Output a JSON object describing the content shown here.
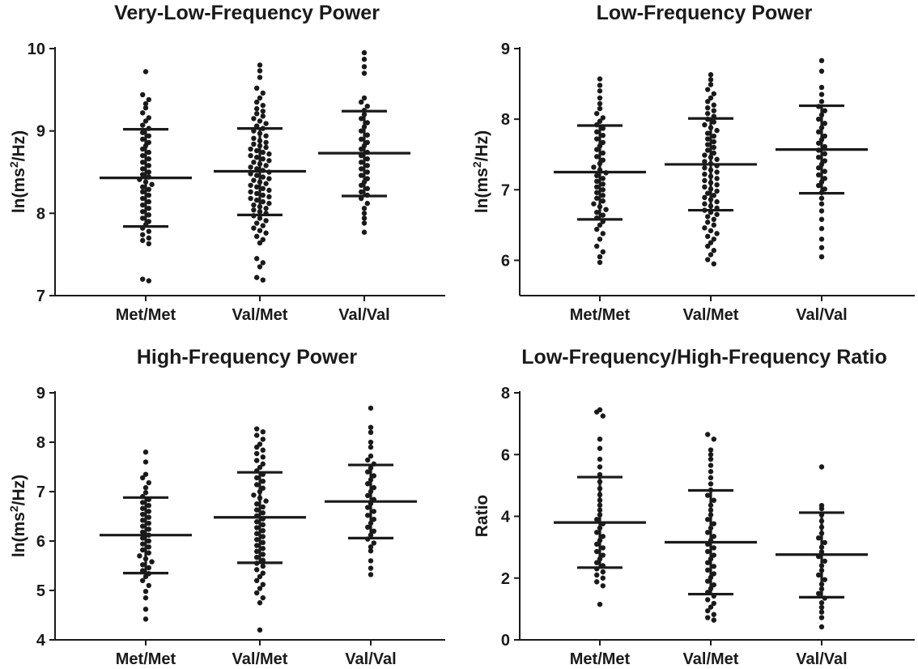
{
  "chart_data": [
    {
      "type": "scatter",
      "title": "Very-Low-Frequency Power",
      "ylabel": "ln(ms²/Hz)",
      "ylabel_parts": [
        "ln(ms",
        "2",
        "/Hz)"
      ],
      "ylim": [
        7,
        10
      ],
      "yticks": [
        7,
        8,
        9,
        10
      ],
      "ytick_labels": [
        "7",
        "8",
        "9",
        "10"
      ],
      "categories": [
        "Met/Met",
        "Val/Met",
        "Val/Val"
      ],
      "grid": false,
      "groups": [
        {
          "name": "Met/Met",
          "mean": 8.43,
          "sd_low": 7.84,
          "sd_high": 9.02,
          "values": [
            9.72,
            9.44,
            9.38,
            9.33,
            9.28,
            9.22,
            9.16,
            9.12,
            9.07,
            9.03,
            8.98,
            8.94,
            8.9,
            8.86,
            8.82,
            8.78,
            8.74,
            8.7,
            8.66,
            8.62,
            8.58,
            8.54,
            8.5,
            8.47,
            8.44,
            8.41,
            8.38,
            8.35,
            8.32,
            8.29,
            8.26,
            8.22,
            8.18,
            8.14,
            8.1,
            8.06,
            8.02,
            7.98,
            7.94,
            7.9,
            7.86,
            7.82,
            7.78,
            7.74,
            7.7,
            7.67,
            7.63,
            7.2,
            7.18
          ]
        },
        {
          "name": "Val/Met",
          "mean": 8.51,
          "sd_low": 7.98,
          "sd_high": 9.03,
          "values": [
            9.8,
            9.73,
            9.65,
            9.52,
            9.46,
            9.4,
            9.35,
            9.31,
            9.27,
            9.24,
            9.21,
            9.18,
            9.15,
            9.12,
            9.09,
            9.06,
            9.03,
            9.0,
            8.97,
            8.94,
            8.91,
            8.88,
            8.86,
            8.84,
            8.82,
            8.8,
            8.78,
            8.76,
            8.74,
            8.72,
            8.7,
            8.68,
            8.66,
            8.64,
            8.62,
            8.6,
            8.58,
            8.56,
            8.54,
            8.52,
            8.5,
            8.48,
            8.46,
            8.44,
            8.42,
            8.4,
            8.38,
            8.36,
            8.34,
            8.32,
            8.3,
            8.28,
            8.26,
            8.24,
            8.22,
            8.2,
            8.18,
            8.16,
            8.14,
            8.12,
            8.1,
            8.08,
            8.06,
            8.04,
            8.02,
            8.0,
            7.97,
            7.94,
            7.91,
            7.88,
            7.85,
            7.82,
            7.79,
            7.76,
            7.72,
            7.68,
            7.64,
            7.45,
            7.4,
            7.35,
            7.22,
            7.19
          ]
        },
        {
          "name": "Val/Val",
          "mean": 8.73,
          "sd_low": 8.21,
          "sd_high": 9.24,
          "values": [
            9.95,
            9.87,
            9.78,
            9.7,
            9.4,
            9.35,
            9.3,
            9.25,
            9.2,
            9.15,
            9.1,
            9.05,
            9.0,
            8.95,
            8.9,
            8.86,
            8.82,
            8.78,
            8.74,
            8.7,
            8.66,
            8.62,
            8.58,
            8.54,
            8.5,
            8.46,
            8.42,
            8.38,
            8.34,
            8.3,
            8.26,
            8.22,
            8.18,
            8.12,
            8.06,
            8.0,
            7.94,
            7.88,
            7.77
          ]
        }
      ]
    },
    {
      "type": "scatter",
      "title": "Low-Frequency Power",
      "ylabel": "ln(ms²/Hz)",
      "ylabel_parts": [
        "ln(ms",
        "2",
        "/Hz)"
      ],
      "ylim": [
        5.5,
        9
      ],
      "yticks": [
        6,
        7,
        8,
        9
      ],
      "ytick_labels": [
        "6",
        "7",
        "8",
        "9"
      ],
      "categories": [
        "Met/Met",
        "Val/Met",
        "Val/Val"
      ],
      "grid": false,
      "groups": [
        {
          "name": "Met/Met",
          "mean": 7.25,
          "sd_low": 6.58,
          "sd_high": 7.91,
          "values": [
            8.57,
            8.48,
            8.4,
            8.3,
            8.22,
            8.15,
            8.08,
            8.02,
            7.97,
            7.92,
            7.87,
            7.82,
            7.77,
            7.72,
            7.67,
            7.62,
            7.57,
            7.52,
            7.47,
            7.42,
            7.37,
            7.32,
            7.28,
            7.24,
            7.2,
            7.16,
            7.12,
            7.08,
            7.04,
            7.0,
            6.96,
            6.92,
            6.88,
            6.84,
            6.8,
            6.76,
            6.72,
            6.68,
            6.64,
            6.6,
            6.55,
            6.5,
            6.44,
            6.38,
            6.3,
            6.2,
            6.12,
            6.05,
            5.97
          ]
        },
        {
          "name": "Val/Met",
          "mean": 7.36,
          "sd_low": 6.71,
          "sd_high": 8.01,
          "values": [
            8.63,
            8.56,
            8.49,
            8.42,
            8.36,
            8.3,
            8.25,
            8.2,
            8.16,
            8.12,
            8.08,
            8.04,
            8.0,
            7.96,
            7.92,
            7.88,
            7.84,
            7.8,
            7.76,
            7.72,
            7.68,
            7.64,
            7.6,
            7.56,
            7.52,
            7.49,
            7.46,
            7.43,
            7.4,
            7.37,
            7.34,
            7.31,
            7.28,
            7.25,
            7.22,
            7.19,
            7.16,
            7.13,
            7.1,
            7.07,
            7.04,
            7.01,
            6.98,
            6.95,
            6.92,
            6.89,
            6.86,
            6.83,
            6.8,
            6.77,
            6.74,
            6.71,
            6.68,
            6.65,
            6.62,
            6.58,
            6.54,
            6.5,
            6.46,
            6.42,
            6.38,
            6.34,
            6.3,
            6.25,
            6.2,
            6.14,
            6.08,
            6.01,
            5.95
          ]
        },
        {
          "name": "Val/Val",
          "mean": 7.57,
          "sd_low": 6.95,
          "sd_high": 8.19,
          "values": [
            8.83,
            8.68,
            8.45,
            8.35,
            8.25,
            8.18,
            8.12,
            8.06,
            8.0,
            7.94,
            7.88,
            7.82,
            7.76,
            7.71,
            7.66,
            7.61,
            7.56,
            7.51,
            7.46,
            7.41,
            7.36,
            7.31,
            7.26,
            7.21,
            7.16,
            7.11,
            7.06,
            7.01,
            6.96,
            6.88,
            6.8,
            6.7,
            6.58,
            6.45,
            6.3,
            6.18,
            6.05
          ]
        }
      ]
    },
    {
      "type": "scatter",
      "title": "High-Frequency Power",
      "ylabel": "ln(ms²/Hz)",
      "ylabel_parts": [
        "ln(ms",
        "2",
        "/Hz)"
      ],
      "ylim": [
        4,
        9
      ],
      "yticks": [
        4,
        5,
        6,
        7,
        8,
        9
      ],
      "ytick_labels": [
        "4",
        "5",
        "6",
        "7",
        "8",
        "9"
      ],
      "categories": [
        "Met/Met",
        "Val/Met",
        "Val/Val"
      ],
      "grid": false,
      "groups": [
        {
          "name": "Met/Met",
          "mean": 6.12,
          "sd_low": 5.35,
          "sd_high": 6.88,
          "values": [
            7.8,
            7.6,
            7.35,
            7.28,
            7.18,
            7.08,
            6.98,
            6.9,
            6.84,
            6.78,
            6.72,
            6.66,
            6.6,
            6.54,
            6.48,
            6.42,
            6.36,
            6.3,
            6.24,
            6.18,
            6.12,
            6.06,
            6.0,
            5.94,
            5.88,
            5.82,
            5.76,
            5.7,
            5.64,
            5.58,
            5.52,
            5.46,
            5.4,
            5.34,
            5.28,
            5.2,
            5.1,
            4.98,
            4.85,
            4.62,
            4.42
          ]
        },
        {
          "name": "Val/Met",
          "mean": 6.48,
          "sd_low": 5.56,
          "sd_high": 7.39,
          "values": [
            8.27,
            8.21,
            8.14,
            8.06,
            7.96,
            7.9,
            7.84,
            7.77,
            7.7,
            7.63,
            7.56,
            7.49,
            7.42,
            7.35,
            7.28,
            7.21,
            7.14,
            7.07,
            7.0,
            6.93,
            6.87,
            6.81,
            6.75,
            6.69,
            6.63,
            6.57,
            6.51,
            6.45,
            6.39,
            6.33,
            6.27,
            6.21,
            6.15,
            6.09,
            6.03,
            5.97,
            5.91,
            5.85,
            5.79,
            5.73,
            5.67,
            5.61,
            5.55,
            5.49,
            5.42,
            5.35,
            5.28,
            5.2,
            5.12,
            5.04,
            4.95,
            4.85,
            4.75,
            4.2
          ]
        },
        {
          "name": "Val/Val",
          "mean": 6.8,
          "sd_low": 6.06,
          "sd_high": 7.54,
          "values": [
            8.69,
            8.3,
            8.2,
            8.0,
            7.9,
            7.72,
            7.64,
            7.56,
            7.48,
            7.4,
            7.32,
            7.24,
            7.16,
            7.08,
            7.0,
            6.92,
            6.84,
            6.76,
            6.68,
            6.6,
            6.52,
            6.44,
            6.36,
            6.28,
            6.2,
            6.12,
            6.04,
            5.96,
            5.88,
            5.8,
            5.6,
            5.45,
            5.32
          ]
        }
      ]
    },
    {
      "type": "scatter",
      "title": "Low-Frequency/High-Frequency Ratio",
      "ylabel": "Ratio",
      "ylim": [
        0,
        8
      ],
      "yticks": [
        0,
        2,
        4,
        6,
        8
      ],
      "ytick_labels": [
        "0",
        "2",
        "4",
        "6",
        "8"
      ],
      "categories": [
        "Met/Met",
        "Val/Met",
        "Val/Val"
      ],
      "grid": false,
      "groups": [
        {
          "name": "Met/Met",
          "mean": 3.8,
          "sd_low": 2.34,
          "sd_high": 5.27,
          "values": [
            7.45,
            7.38,
            7.25,
            6.5,
            6.2,
            5.85,
            5.6,
            5.35,
            5.12,
            4.9,
            4.7,
            4.52,
            4.36,
            4.2,
            4.05,
            3.9,
            3.76,
            3.62,
            3.48,
            3.35,
            3.22,
            3.1,
            2.98,
            2.86,
            2.74,
            2.62,
            2.5,
            2.4,
            2.3,
            2.2,
            2.1,
            2.0,
            1.88,
            1.75,
            1.15
          ]
        },
        {
          "name": "Val/Met",
          "mean": 3.16,
          "sd_low": 1.48,
          "sd_high": 4.84,
          "values": [
            6.65,
            6.5,
            6.15,
            6.0,
            5.85,
            5.65,
            5.45,
            5.25,
            5.05,
            4.85,
            4.68,
            4.52,
            4.36,
            4.2,
            4.05,
            3.9,
            3.76,
            3.62,
            3.48,
            3.35,
            3.22,
            3.1,
            2.98,
            2.86,
            2.74,
            2.62,
            2.5,
            2.38,
            2.26,
            2.14,
            2.02,
            1.9,
            1.78,
            1.66,
            1.54,
            1.42,
            1.3,
            1.18,
            1.06,
            0.94,
            0.82,
            0.72,
            0.64
          ]
        },
        {
          "name": "Val/Val",
          "mean": 2.76,
          "sd_low": 1.38,
          "sd_high": 4.12,
          "values": [
            5.6,
            4.35,
            4.25,
            4.05,
            3.85,
            3.65,
            3.45,
            3.3,
            3.15,
            3.0,
            2.85,
            2.7,
            2.55,
            2.4,
            2.25,
            2.1,
            1.95,
            1.8,
            1.65,
            1.5,
            1.35,
            1.2,
            1.05,
            0.9,
            0.72,
            0.42
          ]
        }
      ]
    }
  ]
}
